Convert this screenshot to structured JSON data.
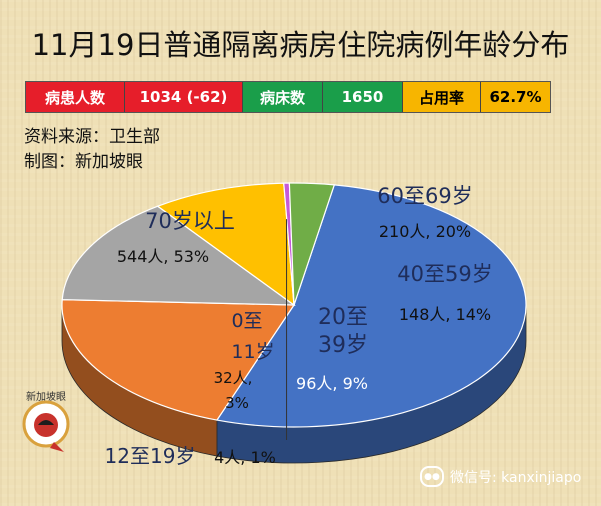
{
  "header": {
    "title": "11月19日普通隔离病房住院病例年龄分布"
  },
  "stats": {
    "patients_label": "病患人数",
    "patients_value": "1034 (-62)",
    "beds_label": "病床数",
    "beds_value": "1650",
    "occupancy_label": "占用率",
    "occupancy_value": "62.7%"
  },
  "source": {
    "data_source": "资料来源：卫生部",
    "made_by": "制图：新加坡眼"
  },
  "watermark": {
    "logo_text": "新加坡眼",
    "wechat": "微信号: kanxinjiapo"
  },
  "colors": {
    "patients_bg": "#e61e2a",
    "beds_bg": "#1a9e4a",
    "occupancy_bg": "#f7b500"
  },
  "chart_data": {
    "type": "pie",
    "title": "11月19日普通隔离病房住院病例年龄分布",
    "slices": [
      {
        "name": "70岁以上",
        "count": 544,
        "percent": 53,
        "label": "544人, 53%",
        "color": "#4472c4"
      },
      {
        "name": "60至69岁",
        "count": 210,
        "percent": 20,
        "label": "210人, 20%",
        "color": "#ed7d31"
      },
      {
        "name": "40至59岁",
        "count": 148,
        "percent": 14,
        "label": "148人, 14%",
        "color": "#a5a5a5"
      },
      {
        "name": "20至39岁",
        "count": 96,
        "percent": 9,
        "label": "96人, 9%",
        "color": "#ffc000"
      },
      {
        "name": "12至19岁",
        "count": 4,
        "percent": 1,
        "label": "4人, 1%",
        "color": "#c55ad8"
      },
      {
        "name": "0至11岁",
        "count": 32,
        "percent": 3,
        "label": "32人, 3%",
        "color": "#70ad47"
      }
    ]
  }
}
